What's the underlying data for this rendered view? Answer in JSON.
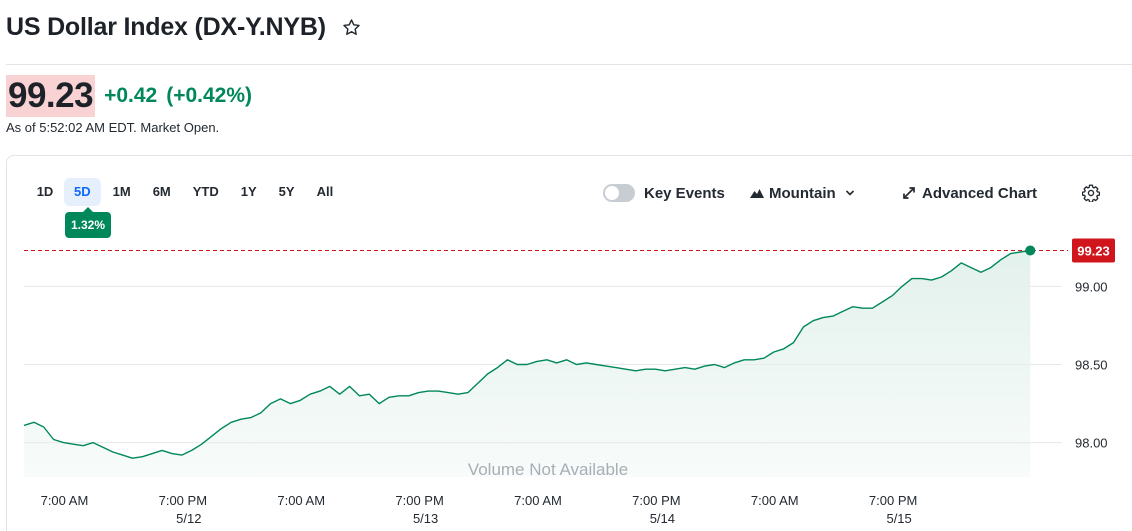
{
  "header": {
    "title": "US Dollar Index (DX-Y.NYB)",
    "star_icon": "star-outline-icon"
  },
  "quote": {
    "price": "99.23",
    "change": "+0.42",
    "change_percent": "(+0.42%)",
    "as_of": "As of 5:52:02 AM EDT. Market Open.",
    "price_bg_color": "#f9d2d4",
    "positive_color": "#00875a"
  },
  "ranges": {
    "tabs": [
      "1D",
      "5D",
      "1M",
      "6M",
      "YTD",
      "1Y",
      "5Y",
      "All"
    ],
    "active": "5D",
    "badge": "1.32%"
  },
  "controls": {
    "key_events": "Key Events",
    "key_events_on": false,
    "chart_type": "Mountain",
    "advanced_chart": "Advanced Chart",
    "gear_icon": "gear-icon",
    "expand_icon": "expand-arrows-icon",
    "mountain_icon": "mountain-icon"
  },
  "chart_data": {
    "type": "area",
    "title": "",
    "xlabel": "",
    "ylabel": "",
    "volume_note": "Volume Not Available",
    "last_value": 99.23,
    "last_value_label": "99.23",
    "ylim": [
      97.78,
      99.38
    ],
    "y_ticks": [
      {
        "value": 98.0,
        "label": "98.00"
      },
      {
        "value": 98.5,
        "label": "98.50"
      },
      {
        "value": 99.0,
        "label": "99.00"
      }
    ],
    "x_ticks": [
      {
        "t": 1.1,
        "time": "7:00 AM",
        "date": ""
      },
      {
        "t": 13.1,
        "time": "7:00 PM",
        "date": "5/12"
      },
      {
        "t": 25.1,
        "time": "7:00 AM",
        "date": ""
      },
      {
        "t": 37.1,
        "time": "7:00 PM",
        "date": "5/13"
      },
      {
        "t": 49.1,
        "time": "7:00 AM",
        "date": ""
      },
      {
        "t": 61.1,
        "time": "7:00 PM",
        "date": "5/14"
      },
      {
        "t": 73.1,
        "time": "7:00 AM",
        "date": ""
      },
      {
        "t": 85.1,
        "time": "7:00 PM",
        "date": "5/15"
      }
    ],
    "t_range": [
      -3,
      101
    ],
    "series": [
      {
        "line_color": "#00875a",
        "fill_color": "#e3f1ec",
        "ref_color": "#d0151d",
        "points": [
          [
            -3,
            98.11
          ],
          [
            -2,
            98.13
          ],
          [
            -1,
            98.1
          ],
          [
            0,
            98.02
          ],
          [
            1,
            98.0
          ],
          [
            2,
            97.99
          ],
          [
            3,
            97.98
          ],
          [
            4,
            98.0
          ],
          [
            5,
            97.97
          ],
          [
            6,
            97.94
          ],
          [
            7,
            97.92
          ],
          [
            8,
            97.9
          ],
          [
            9,
            97.91
          ],
          [
            10,
            97.93
          ],
          [
            11,
            97.95
          ],
          [
            12,
            97.93
          ],
          [
            13,
            97.92
          ],
          [
            14,
            97.95
          ],
          [
            15,
            97.99
          ],
          [
            16,
            98.04
          ],
          [
            17,
            98.09
          ],
          [
            18,
            98.13
          ],
          [
            19,
            98.15
          ],
          [
            20,
            98.16
          ],
          [
            21,
            98.19
          ],
          [
            22,
            98.25
          ],
          [
            23,
            98.28
          ],
          [
            24,
            98.25
          ],
          [
            25,
            98.27
          ],
          [
            26,
            98.31
          ],
          [
            27,
            98.33
          ],
          [
            28,
            98.36
          ],
          [
            29,
            98.31
          ],
          [
            30,
            98.36
          ],
          [
            31,
            98.3
          ],
          [
            32,
            98.31
          ],
          [
            33,
            98.25
          ],
          [
            34,
            98.29
          ],
          [
            35,
            98.3
          ],
          [
            36,
            98.3
          ],
          [
            37,
            98.32
          ],
          [
            38,
            98.33
          ],
          [
            39,
            98.33
          ],
          [
            40,
            98.32
          ],
          [
            41,
            98.31
          ],
          [
            42,
            98.32
          ],
          [
            43,
            98.38
          ],
          [
            44,
            98.44
          ],
          [
            45,
            98.48
          ],
          [
            46,
            98.53
          ],
          [
            47,
            98.5
          ],
          [
            48,
            98.5
          ],
          [
            49,
            98.52
          ],
          [
            50,
            98.53
          ],
          [
            51,
            98.51
          ],
          [
            52,
            98.53
          ],
          [
            53,
            98.5
          ],
          [
            54,
            98.51
          ],
          [
            55,
            98.5
          ],
          [
            56,
            98.49
          ],
          [
            57,
            98.48
          ],
          [
            58,
            98.47
          ],
          [
            59,
            98.46
          ],
          [
            60,
            98.47
          ],
          [
            61,
            98.47
          ],
          [
            62,
            98.46
          ],
          [
            63,
            98.47
          ],
          [
            64,
            98.48
          ],
          [
            65,
            98.47
          ],
          [
            66,
            98.49
          ],
          [
            67,
            98.5
          ],
          [
            68,
            98.48
          ],
          [
            69,
            98.51
          ],
          [
            70,
            98.53
          ],
          [
            71,
            98.53
          ],
          [
            72,
            98.54
          ],
          [
            73,
            98.58
          ],
          [
            74,
            98.6
          ],
          [
            75,
            98.64
          ],
          [
            76,
            98.74
          ],
          [
            77,
            98.78
          ],
          [
            78,
            98.8
          ],
          [
            79,
            98.81
          ],
          [
            80,
            98.84
          ],
          [
            81,
            98.87
          ],
          [
            82,
            98.86
          ],
          [
            83,
            98.86
          ],
          [
            84,
            98.9
          ],
          [
            85,
            98.94
          ],
          [
            86,
            99.0
          ],
          [
            87,
            99.05
          ],
          [
            88,
            99.05
          ],
          [
            89,
            99.04
          ],
          [
            90,
            99.06
          ],
          [
            91,
            99.1
          ],
          [
            92,
            99.15
          ],
          [
            93,
            99.12
          ],
          [
            94,
            99.09
          ],
          [
            95,
            99.12
          ],
          [
            96,
            99.17
          ],
          [
            97,
            99.21
          ],
          [
            98,
            99.22
          ],
          [
            99,
            99.23
          ]
        ]
      }
    ]
  }
}
